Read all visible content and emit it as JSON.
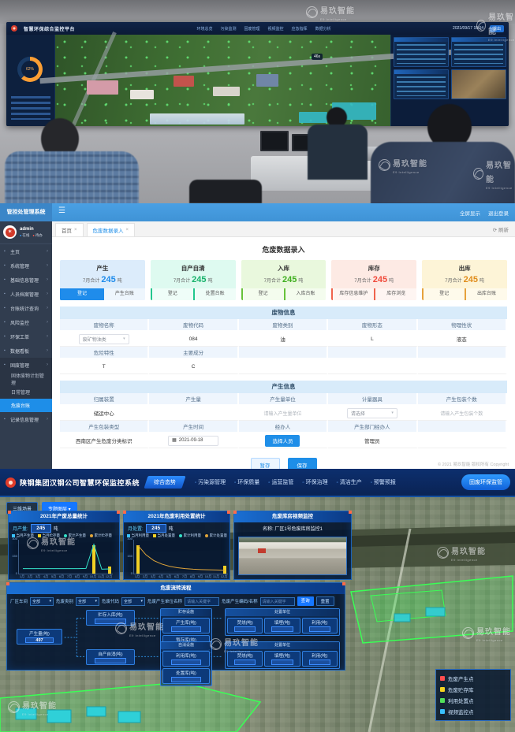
{
  "watermark": {
    "brand": "易玖智能",
    "subtitle": "E9 Intelligence"
  },
  "photo_screen": {
    "title": "智慧环保综合监控平台",
    "nav": [
      "环境总览",
      "污染监测",
      "固废管理",
      "视频监控",
      "应急指挥",
      "数据分析"
    ],
    "datetime": "2021/09/17 15:04",
    "header_chip": "退出",
    "speed_badge": "46s"
  },
  "webapp": {
    "header": {
      "title": "管控处管理系统",
      "actions": [
        "全屏显示",
        "退出登录"
      ]
    },
    "sidebar": {
      "user": {
        "name": "admin",
        "tags": [
          "在线",
          "待办"
        ]
      },
      "items": [
        {
          "label": "主页"
        },
        {
          "label": "系统管理"
        },
        {
          "label": "基础信息管理"
        },
        {
          "label": "人员档案管理"
        },
        {
          "label": "台账统计查询"
        },
        {
          "label": "风险监控"
        },
        {
          "label": "环保工单"
        },
        {
          "label": "数据看板"
        },
        {
          "label": "固废管理",
          "expanded": true,
          "children": [
            {
              "label": "固体废物计划管理"
            },
            {
              "label": "日常管理"
            },
            {
              "label": "危废台账",
              "active": true
            }
          ]
        },
        {
          "label": "记录信息管理"
        }
      ]
    },
    "tabs": [
      {
        "label": "首页"
      },
      {
        "label": "危废数据录入",
        "active": true
      }
    ],
    "refresh_label": "刷新",
    "page_title": "危废数据录入",
    "cards": [
      {
        "title": "产生",
        "summary_prefix": "7月合计",
        "value": "245",
        "unit": "吨",
        "tabs": [
          "登记",
          "产生台账"
        ],
        "active_tab": 0,
        "bg": "#dcecfb",
        "accent": "#1f8ceb",
        "value_color": "#1f8ceb"
      },
      {
        "title": "自产自清",
        "summary_prefix": "7月合计",
        "value": "245",
        "unit": "吨",
        "tabs": [
          "登记",
          "处置台账"
        ],
        "active_tab": -1,
        "bg": "#defaf0",
        "accent": "#23c78e",
        "value_color": "#17b26a"
      },
      {
        "title": "入库",
        "summary_prefix": "7月合计",
        "value": "245",
        "unit": "吨",
        "tabs": [
          "登记",
          "入库台账"
        ],
        "active_tab": -1,
        "bg": "#e9f8dd",
        "accent": "#67c23a",
        "value_color": "#3fae1f"
      },
      {
        "title": "库存",
        "summary_prefix": "7月合计",
        "value": "245",
        "unit": "吨",
        "tabs": [
          "库存信息维护",
          "库存浏览"
        ],
        "active_tab": -1,
        "bg": "#fdeae4",
        "accent": "#f0634d",
        "value_color": "#f04b3c"
      },
      {
        "title": "出库",
        "summary_prefix": "7月合计",
        "value": "245",
        "unit": "吨",
        "tabs": [
          "登记",
          "出库台账"
        ],
        "active_tab": -1,
        "bg": "#fdf4d7",
        "accent": "#e6a23c",
        "value_color": "#e08d1c"
      }
    ],
    "waste_info": {
      "title": "废物信息",
      "rows": [
        [
          {
            "label": "废物名称",
            "value": "废矿物油类",
            "type": "select"
          },
          {
            "label": "废物代码",
            "value": "084",
            "type": "text"
          },
          {
            "label": "废物类别",
            "value": "油",
            "type": "text"
          },
          {
            "label": "废物形态",
            "value": "L",
            "type": "text"
          },
          {
            "label": "物理性状",
            "value": "液态",
            "type": "text"
          }
        ],
        [
          {
            "label": "危险特性",
            "value": "T",
            "type": "text"
          },
          {
            "label": "主要成分",
            "value": "C",
            "type": "text"
          },
          {
            "label": "",
            "value": "",
            "type": "empty"
          },
          {
            "label": "",
            "value": "",
            "type": "empty"
          },
          {
            "label": "",
            "value": "",
            "type": "empty"
          }
        ]
      ]
    },
    "gen_info": {
      "title": "产生信息",
      "rows": [
        [
          {
            "label": "归属装置",
            "value": "储运中心",
            "type": "text"
          },
          {
            "label": "产生量",
            "value": "",
            "type": "empty"
          },
          {
            "label": "产生量单位",
            "value": "",
            "placeholder": "请输入产生量单位",
            "type": "placeholder"
          },
          {
            "label": "计量器具",
            "value": "请选择",
            "type": "select"
          },
          {
            "label": "产生包装个数",
            "value": "",
            "placeholder": "请输入产生包装个数",
            "type": "placeholder"
          }
        ],
        [
          {
            "label": "产生包装类型",
            "value": "西南区产生危废分类标识",
            "type": "text"
          },
          {
            "label": "产生时间",
            "value": "2021-09-18",
            "type": "date"
          },
          {
            "label": "经办人",
            "value": "选择人员",
            "type": "button"
          },
          {
            "label": "产生部门经办人",
            "value": "管理员",
            "type": "text"
          },
          {
            "label": "",
            "value": "",
            "type": "empty"
          }
        ]
      ]
    },
    "form_buttons": [
      {
        "label": "暂存",
        "style": "plain"
      },
      {
        "label": "保存",
        "style": "primary"
      }
    ],
    "footer": "© 2021 易玖智能 版权所有 Copyright"
  },
  "dashboard": {
    "header": {
      "title": "陕钢集团汉钢公司智慧环保监控系统",
      "home_tab": "综合态势",
      "nav": [
        "污染源管理",
        "环保质量",
        "运营监管",
        "环保治理",
        "清洁生产",
        "预警预报"
      ],
      "cta": "固废环保监管"
    },
    "map_chips": [
      "三维场景",
      "专题图层 ▾"
    ],
    "panel1": {
      "title": "2021年产废总量统计",
      "stat_label": "月产量:",
      "stat_value": "245",
      "unit": "吨"
    },
    "panel2": {
      "title": "2021年危废利用处置统计",
      "stat_label": "月处置:",
      "stat_value": "245",
      "unit": "吨"
    },
    "panel3": {
      "title": "危废库房视频监控",
      "caption": "名称: 厂区1号危废库房监控1"
    },
    "flow": {
      "title": "危废流转流程",
      "filters": [
        {
          "label": "厂区车间",
          "value": "全部",
          "type": "select"
        },
        {
          "label": "危废类别",
          "value": "全部",
          "type": "select"
        },
        {
          "label": "危废代码",
          "value": "全部",
          "type": "select"
        },
        {
          "label": "危废产生单位名称",
          "placeholder": "请输入关键字",
          "type": "input"
        },
        {
          "label": "危废产生编码/名称",
          "placeholder": "请输入关键字",
          "type": "input"
        }
      ],
      "buttons": [
        "查询",
        "重置"
      ],
      "source": {
        "label": "产生量(吨)",
        "value": "497"
      },
      "branches": [
        {
          "label": "贮存入库(吨)",
          "value": ""
        },
        {
          "label": "自产自消(吨)",
          "value": ""
        }
      ],
      "groups": [
        {
          "title": "贮存设施",
          "nodes": [
            {
              "label": "产生库(吨)",
              "value": ""
            },
            {
              "label": "暂存库(吨)",
              "value": ""
            }
          ]
        },
        {
          "title": "自消设施",
          "nodes": [
            {
              "label": "利用库(吨)",
              "value": ""
            },
            {
              "label": "处置库(吨)",
              "value": ""
            }
          ]
        },
        {
          "title": "处置单位",
          "nodes": [
            {
              "label": "焚烧(吨)",
              "value": ""
            },
            {
              "label": "填埋(吨)",
              "value": ""
            },
            {
              "label": "利用(吨)",
              "value": ""
            }
          ]
        },
        {
          "title": "处置单位",
          "nodes": [
            {
              "label": "焚烧(吨)",
              "value": ""
            },
            {
              "label": "填埋(吨)",
              "value": ""
            },
            {
              "label": "利用(吨)",
              "value": ""
            }
          ]
        }
      ]
    },
    "map_legend": [
      {
        "label": "危废产生点",
        "color": "#ff4d4f"
      },
      {
        "label": "危废贮存库",
        "color": "#f5d31f"
      },
      {
        "label": "利用处置点",
        "color": "#52e05a"
      },
      {
        "label": "视频监控点",
        "color": "#39c2ff"
      }
    ]
  },
  "chart_data": [
    {
      "type": "bar",
      "title": "2021年产废总量统计",
      "categories": [
        "1月",
        "2月",
        "3月",
        "4月",
        "5月",
        "6月",
        "7月",
        "8月",
        "9月",
        "10月",
        "11月",
        "12月"
      ],
      "series": [
        {
          "name": "当月产生量",
          "type": "bar",
          "color": "#f2d024",
          "values": [
            0,
            0,
            0,
            0,
            0,
            0,
            0,
            0,
            0,
            245,
            0,
            60
          ]
        },
        {
          "name": "累计产生量",
          "type": "line",
          "color": "#35e0c8",
          "values": [
            50,
            50,
            50,
            50,
            50,
            50,
            50,
            50,
            52,
            260,
            45,
            48
          ]
        }
      ],
      "legend": [
        "当月产生量",
        "当月贮存量",
        "累计产生量",
        "累计贮存量"
      ],
      "legend_colors": [
        "#39c2ff",
        "#f2d024",
        "#35e0c8",
        "#e0a53a"
      ],
      "ylabel": "吨",
      "ylim": [
        0,
        300
      ],
      "yticks": [
        0,
        150,
        300
      ]
    },
    {
      "type": "bar",
      "title": "2021年危废利用处置统计",
      "categories": [
        "1月",
        "2月",
        "3月",
        "4月",
        "5月",
        "6月",
        "7月",
        "8月",
        "9月",
        "10月",
        "11月",
        "12月"
      ],
      "series": [
        {
          "name": "当月处置量",
          "type": "bar",
          "color": "#f2d024",
          "values": [
            245,
            0,
            0,
            0,
            0,
            0,
            0,
            0,
            0,
            0,
            0,
            65
          ]
        },
        {
          "name": "累计处置量",
          "type": "line",
          "color": "#e0a53a",
          "values": [
            250,
            170,
            120,
            90,
            70,
            58,
            50,
            45,
            42,
            40,
            38,
            36
          ]
        }
      ],
      "legend": [
        "当月利用量",
        "当月处置量",
        "累计利用量",
        "累计处置量"
      ],
      "legend_colors": [
        "#39c2ff",
        "#f2d024",
        "#35e0c8",
        "#e0a53a"
      ],
      "ylabel": "吨",
      "ylim": [
        0,
        300
      ],
      "yticks": [
        0,
        150,
        300
      ]
    }
  ]
}
